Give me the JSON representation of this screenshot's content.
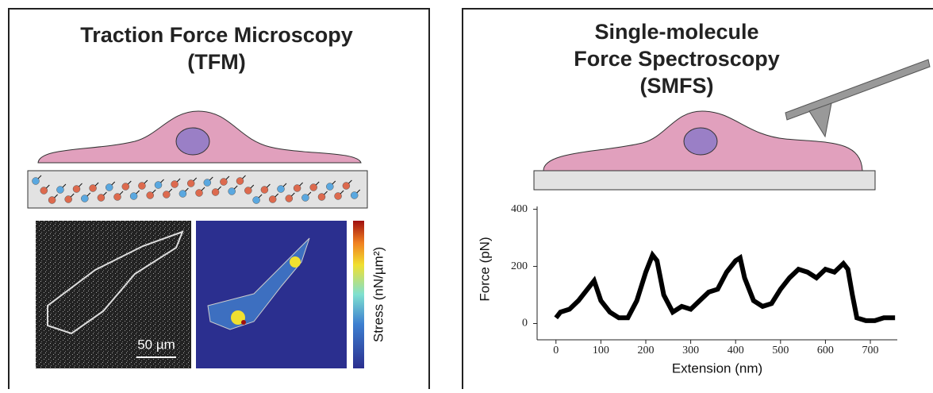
{
  "left_panel": {
    "title": "Traction Force Microscopy",
    "subtitle": "(TFM)",
    "scale_bar": "50 µm",
    "colorbar_label": "Stress (nN/µm²)"
  },
  "right_panel": {
    "title_lines": [
      "Single-molecule",
      "Force Spectroscopy",
      "(SMFS)"
    ]
  },
  "chart_data": {
    "type": "line",
    "x_label": "Extension (nm)",
    "y_label": "Force (pN)",
    "color": "#000000",
    "xlim": [
      -42,
      760
    ],
    "ylim": [
      -57,
      410
    ],
    "xticks": [
      0,
      100,
      200,
      300,
      400,
      500,
      600,
      700
    ],
    "yticks": [
      0,
      200,
      400
    ],
    "x": [
      0,
      10,
      30,
      50,
      70,
      85,
      100,
      120,
      140,
      160,
      180,
      200,
      215,
      225,
      240,
      260,
      280,
      300,
      320,
      340,
      360,
      380,
      400,
      410,
      420,
      440,
      460,
      480,
      500,
      520,
      540,
      560,
      580,
      600,
      620,
      640,
      650,
      660,
      670,
      690,
      710,
      730,
      755
    ],
    "values": [
      20,
      40,
      50,
      80,
      120,
      150,
      80,
      40,
      20,
      20,
      80,
      180,
      240,
      220,
      100,
      40,
      60,
      50,
      80,
      110,
      120,
      180,
      220,
      230,
      160,
      80,
      60,
      70,
      120,
      160,
      190,
      180,
      160,
      190,
      180,
      210,
      190,
      100,
      20,
      10,
      10,
      20,
      20
    ]
  }
}
